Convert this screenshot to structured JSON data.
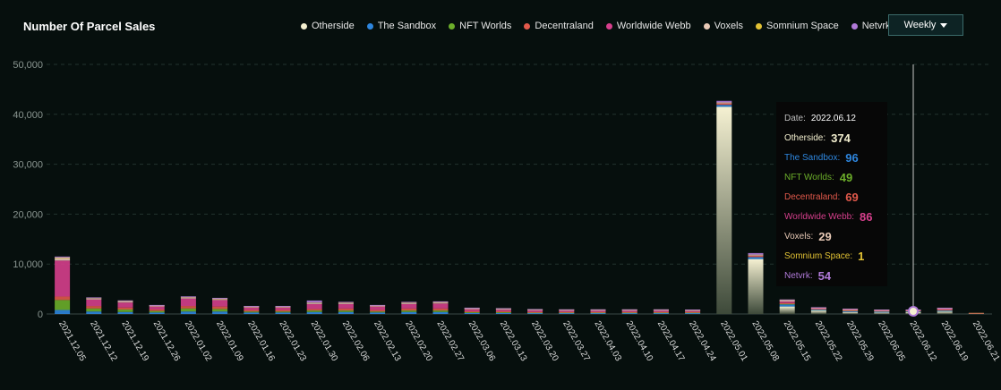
{
  "header": {
    "title": "Number Of Parcel Sales",
    "period_label": "Weekly"
  },
  "chart_data": {
    "type": "bar",
    "stacked": true,
    "title": "Number Of Parcel Sales",
    "xlabel": "",
    "ylabel": "",
    "ylim": [
      0,
      50000
    ],
    "yticks": [
      0,
      10000,
      20000,
      30000,
      40000,
      50000
    ],
    "ytick_labels": [
      "0",
      "10,000",
      "20,000",
      "30,000",
      "40,000",
      "50,000"
    ],
    "grid": true,
    "legend_position": "top",
    "categories": [
      "2021.12.05",
      "2021.12.12",
      "2021.12.19",
      "2021.12.26",
      "2022.01.02",
      "2022.01.09",
      "2022.01.16",
      "2022.01.23",
      "2022.01.30",
      "2022.02.06",
      "2022.02.13",
      "2022.02.20",
      "2022.02.27",
      "2022.03.06",
      "2022.03.13",
      "2022.03.20",
      "2022.03.27",
      "2022.04.03",
      "2022.04.10",
      "2022.04.17",
      "2022.04.24",
      "2022.05.01",
      "2022.05.08",
      "2022.05.15",
      "2022.05.22",
      "2022.05.29",
      "2022.06.05",
      "2022.06.12",
      "2022.06.19",
      "2022.06.21"
    ],
    "series": [
      {
        "name": "Otherside",
        "color": "#f3efcf",
        "values": [
          0,
          0,
          0,
          0,
          0,
          0,
          0,
          0,
          0,
          0,
          0,
          0,
          0,
          0,
          0,
          0,
          0,
          0,
          0,
          0,
          0,
          41500,
          11000,
          1500,
          700,
          400,
          300,
          374,
          500,
          0
        ]
      },
      {
        "name": "The Sandbox",
        "color": "#2e86de",
        "values": [
          800,
          500,
          400,
          300,
          500,
          500,
          300,
          300,
          400,
          400,
          300,
          400,
          400,
          200,
          200,
          150,
          150,
          150,
          150,
          150,
          150,
          400,
          400,
          400,
          150,
          150,
          150,
          96,
          150,
          30
        ]
      },
      {
        "name": "NFT Worlds",
        "color": "#6cae2a",
        "values": [
          2000,
          600,
          500,
          300,
          600,
          500,
          200,
          200,
          300,
          300,
          200,
          300,
          300,
          150,
          150,
          100,
          100,
          100,
          100,
          100,
          100,
          0,
          0,
          100,
          50,
          50,
          40,
          49,
          50,
          10
        ]
      },
      {
        "name": "Decentraland",
        "color": "#e2594b",
        "values": [
          700,
          500,
          400,
          300,
          500,
          500,
          300,
          300,
          300,
          400,
          300,
          400,
          400,
          200,
          200,
          150,
          150,
          150,
          150,
          150,
          150,
          300,
          300,
          200,
          100,
          100,
          80,
          69,
          100,
          10
        ]
      },
      {
        "name": "Worldwide Webb",
        "color": "#d63f8c",
        "values": [
          7200,
          1300,
          1000,
          600,
          1500,
          1300,
          500,
          500,
          1000,
          900,
          700,
          900,
          1000,
          400,
          300,
          300,
          250,
          250,
          250,
          250,
          200,
          0,
          0,
          300,
          100,
          100,
          80,
          86,
          200,
          0
        ]
      },
      {
        "name": "Voxels",
        "color": "#e8c9b6",
        "values": [
          500,
          200,
          200,
          100,
          200,
          200,
          100,
          100,
          200,
          200,
          100,
          200,
          200,
          100,
          100,
          80,
          80,
          80,
          80,
          80,
          80,
          200,
          200,
          200,
          60,
          60,
          40,
          29,
          60,
          0
        ]
      },
      {
        "name": "Somnium Space",
        "color": "#e2c234",
        "values": [
          100,
          50,
          50,
          30,
          50,
          50,
          30,
          30,
          50,
          50,
          30,
          50,
          50,
          30,
          30,
          20,
          20,
          20,
          20,
          20,
          20,
          0,
          0,
          30,
          10,
          10,
          5,
          1,
          10,
          0
        ]
      },
      {
        "name": "Netvrk",
        "color": "#b07ad8",
        "values": [
          200,
          150,
          150,
          100,
          150,
          150,
          100,
          100,
          450,
          150,
          100,
          150,
          150,
          100,
          100,
          80,
          80,
          80,
          80,
          80,
          80,
          300,
          300,
          100,
          50,
          50,
          40,
          54,
          50,
          0
        ]
      }
    ]
  },
  "tooltip": {
    "date_label": "Date:",
    "date_value": "2022.06.12",
    "rows": [
      {
        "label": "Otherside:",
        "value": "374",
        "color": "#f3efcf"
      },
      {
        "label": "The Sandbox:",
        "value": "96",
        "color": "#2e86de"
      },
      {
        "label": "NFT Worlds:",
        "value": "49",
        "color": "#6cae2a"
      },
      {
        "label": "Decentraland:",
        "value": "69",
        "color": "#e2594b"
      },
      {
        "label": "Worldwide Webb:",
        "value": "86",
        "color": "#d63f8c"
      },
      {
        "label": "Voxels:",
        "value": "29",
        "color": "#e8c9b6"
      },
      {
        "label": "Somnium Space:",
        "value": "1",
        "color": "#e2c234"
      },
      {
        "label": "Netvrk:",
        "value": "54",
        "color": "#b07ad8"
      }
    ]
  },
  "hover_category": "2022.06.12"
}
